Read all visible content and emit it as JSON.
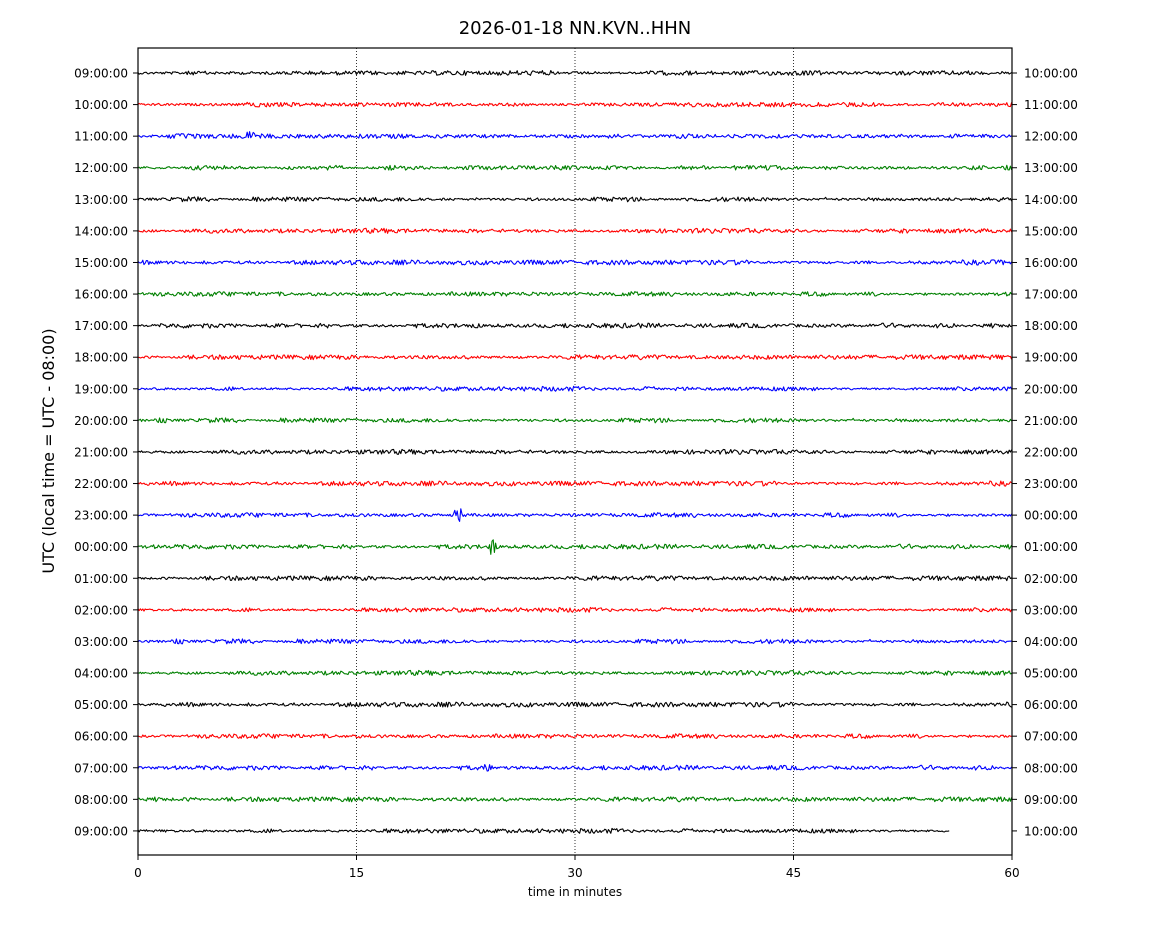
{
  "chart_data": {
    "type": "line",
    "chart_kind": "helicorder",
    "title": "2026-01-18 NN.KVN..HHN",
    "xlabel": "time in minutes",
    "ylabel": "UTC (local time = UTC - 08:00)",
    "xlim": [
      0,
      60
    ],
    "x_ticks": [
      0,
      15,
      30,
      45,
      60
    ],
    "vertical_grid": [
      15,
      30,
      45
    ],
    "grid_style": "dotted",
    "trace_colors": [
      "#000000",
      "#ff0000",
      "#0000ff",
      "#008000"
    ],
    "rows": [
      {
        "utc": "09:00:00",
        "local_end": "10:00:00",
        "color": "#000000",
        "end_minute": 60
      },
      {
        "utc": "10:00:00",
        "local_end": "11:00:00",
        "color": "#ff0000",
        "end_minute": 60
      },
      {
        "utc": "11:00:00",
        "local_end": "12:00:00",
        "color": "#0000ff",
        "end_minute": 60,
        "event_minute": 7.7
      },
      {
        "utc": "12:00:00",
        "local_end": "13:00:00",
        "color": "#008000",
        "end_minute": 60
      },
      {
        "utc": "13:00:00",
        "local_end": "14:00:00",
        "color": "#000000",
        "end_minute": 60
      },
      {
        "utc": "14:00:00",
        "local_end": "15:00:00",
        "color": "#ff0000",
        "end_minute": 60
      },
      {
        "utc": "15:00:00",
        "local_end": "16:00:00",
        "color": "#0000ff",
        "end_minute": 60
      },
      {
        "utc": "16:00:00",
        "local_end": "17:00:00",
        "color": "#008000",
        "end_minute": 60
      },
      {
        "utc": "17:00:00",
        "local_end": "18:00:00",
        "color": "#000000",
        "end_minute": 60
      },
      {
        "utc": "18:00:00",
        "local_end": "19:00:00",
        "color": "#ff0000",
        "end_minute": 60
      },
      {
        "utc": "19:00:00",
        "local_end": "20:00:00",
        "color": "#0000ff",
        "end_minute": 60
      },
      {
        "utc": "20:00:00",
        "local_end": "21:00:00",
        "color": "#008000",
        "end_minute": 60
      },
      {
        "utc": "21:00:00",
        "local_end": "22:00:00",
        "color": "#000000",
        "end_minute": 60
      },
      {
        "utc": "22:00:00",
        "local_end": "23:00:00",
        "color": "#ff0000",
        "end_minute": 60
      },
      {
        "utc": "23:00:00",
        "local_end": "00:00:00",
        "color": "#0000ff",
        "end_minute": 60,
        "event_minute": 22.0
      },
      {
        "utc": "00:00:00",
        "local_end": "01:00:00",
        "color": "#008000",
        "end_minute": 60,
        "event_minute": 24.3
      },
      {
        "utc": "01:00:00",
        "local_end": "02:00:00",
        "color": "#000000",
        "end_minute": 60
      },
      {
        "utc": "02:00:00",
        "local_end": "03:00:00",
        "color": "#ff0000",
        "end_minute": 60
      },
      {
        "utc": "03:00:00",
        "local_end": "04:00:00",
        "color": "#0000ff",
        "end_minute": 60
      },
      {
        "utc": "04:00:00",
        "local_end": "05:00:00",
        "color": "#008000",
        "end_minute": 60
      },
      {
        "utc": "05:00:00",
        "local_end": "06:00:00",
        "color": "#000000",
        "end_minute": 60
      },
      {
        "utc": "06:00:00",
        "local_end": "07:00:00",
        "color": "#ff0000",
        "end_minute": 60
      },
      {
        "utc": "07:00:00",
        "local_end": "08:00:00",
        "color": "#0000ff",
        "end_minute": 60,
        "event_minute": 24.0
      },
      {
        "utc": "08:00:00",
        "local_end": "09:00:00",
        "color": "#008000",
        "end_minute": 60
      },
      {
        "utc": "09:00:00",
        "local_end": "10:00:00",
        "color": "#000000",
        "end_minute": 55.7
      }
    ]
  }
}
